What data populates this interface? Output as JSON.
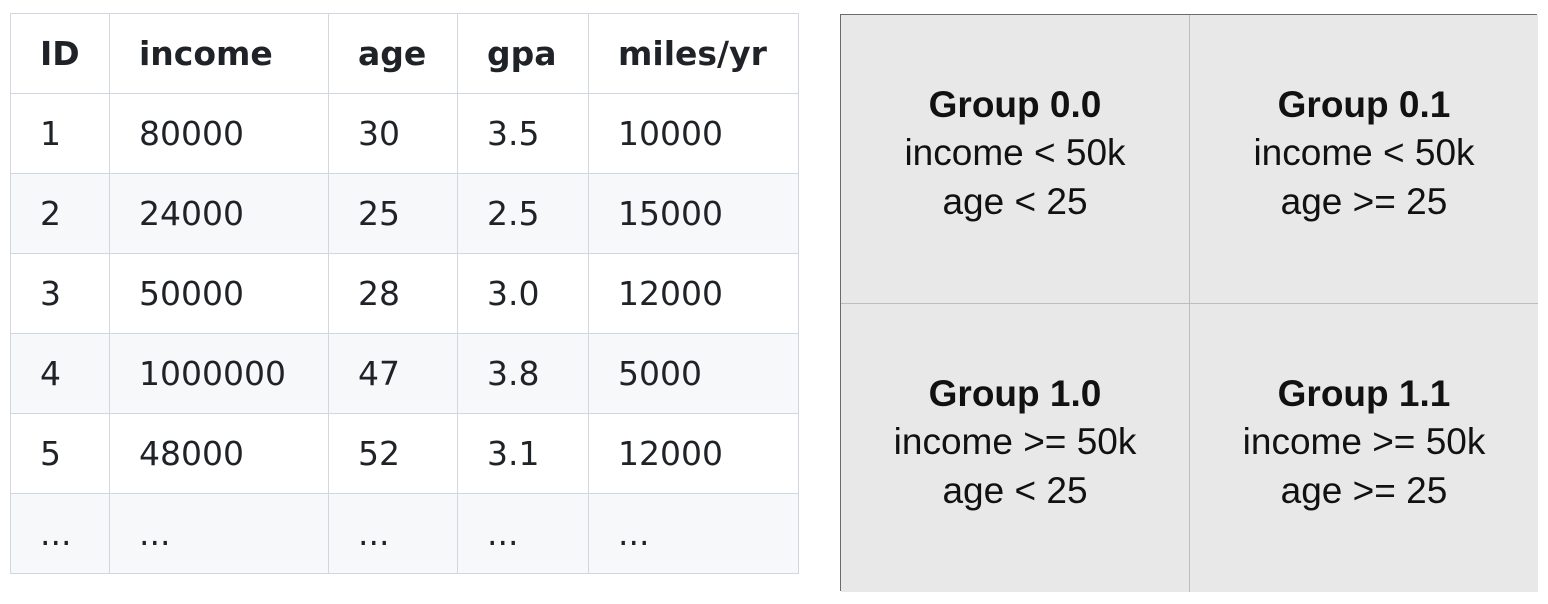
{
  "table": {
    "columns": [
      "ID",
      "income",
      "age",
      "gpa",
      "miles/yr"
    ],
    "rows": [
      [
        "1",
        "80000",
        "30",
        "3.5",
        "10000"
      ],
      [
        "2",
        "24000",
        "25",
        "2.5",
        "15000"
      ],
      [
        "3",
        "50000",
        "28",
        "3.0",
        "12000"
      ],
      [
        "4",
        "1000000",
        "47",
        "3.8",
        "5000"
      ],
      [
        "5",
        "48000",
        "52",
        "3.1",
        "12000"
      ],
      [
        "...",
        "...",
        "...",
        "...",
        "..."
      ]
    ]
  },
  "groups": [
    {
      "title": "Group 0.0",
      "income_rule": "income < 50k",
      "age_rule": "age < 25"
    },
    {
      "title": "Group 0.1",
      "income_rule": "income < 50k",
      "age_rule": "age >= 25"
    },
    {
      "title": "Group 1.0",
      "income_rule": "income >= 50k",
      "age_rule": "age < 25"
    },
    {
      "title": "Group 1.1",
      "income_rule": "income >= 50k",
      "age_rule": "age >= 25"
    }
  ],
  "colors": {
    "table_border": "#d0d7de",
    "table_stripe": "#f6f8fa",
    "grid_fill": "#e8e8e8",
    "grid_outline": "#6b6b6b"
  }
}
